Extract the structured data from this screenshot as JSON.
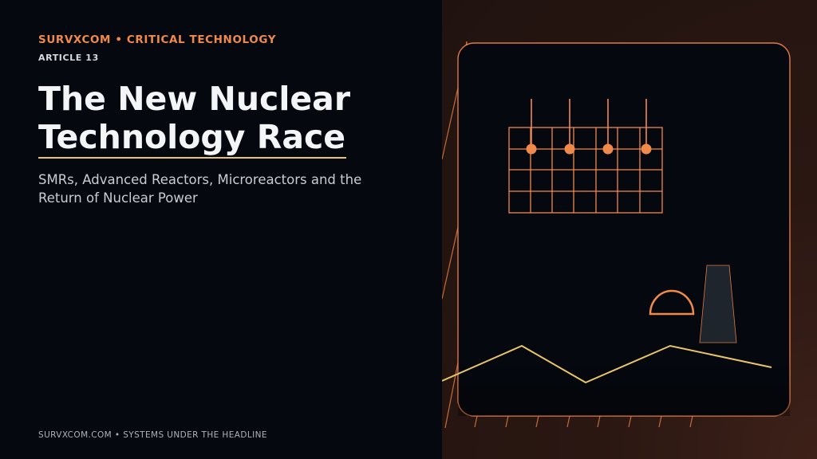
{
  "header": {
    "kicker": "SURVXCOM  •  CRITICAL TECHNOLOGY",
    "article_label": "ARTICLE 13"
  },
  "title": {
    "line1": "The New Nuclear",
    "line2": "Technology Race"
  },
  "subtitle": {
    "line1": "SMRs, Advanced Reactors, Microreactors and the",
    "line2": "Return of Nuclear Power"
  },
  "footer": {
    "text": "SURVXCOM.COM  •  SYSTEMS UNDER THE HEADLINE"
  },
  "colors": {
    "accent_orange": "#f08a4b",
    "accent_gold": "#e8c46a",
    "panel_dark": "#05080f",
    "right_panel_brown": "#2b1712"
  },
  "illustration": {
    "icons": [
      "reactor-core-grid-icon",
      "control-rod-icon",
      "containment-dome-icon",
      "cooling-tower-icon",
      "power-line-icon"
    ]
  }
}
